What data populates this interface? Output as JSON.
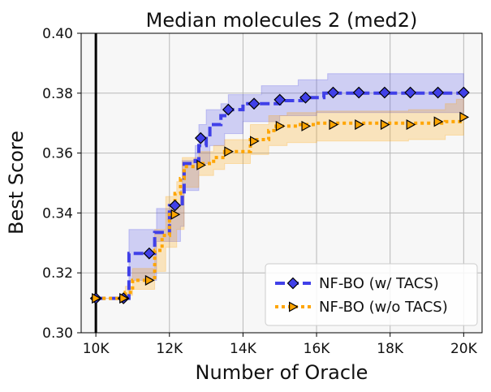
{
  "chart_data": {
    "type": "line",
    "title": "Median molecules 2 (med2)",
    "xlabel": "Number of Oracle",
    "ylabel": "Best Score",
    "xlim": [
      9600,
      20500
    ],
    "ylim": [
      0.3,
      0.4
    ],
    "xticks": [
      10000,
      12000,
      14000,
      16000,
      18000,
      20000
    ],
    "xtick_labels": [
      "10K",
      "12K",
      "14K",
      "16K",
      "18K",
      "20K"
    ],
    "yticks": [
      0.3,
      0.32,
      0.34,
      0.36,
      0.38,
      0.4
    ],
    "ytick_labels": [
      "0.30",
      "0.32",
      "0.34",
      "0.36",
      "0.38",
      "0.40"
    ],
    "grid": true,
    "legend_position": "lower-right",
    "vertical_line_x": 10000,
    "series": [
      {
        "name": "NF-BO (w/ TACS)",
        "color": "#4040e8",
        "marker": "diamond",
        "linestyle": "dashed",
        "step": [
          [
            10000,
            0.3115
          ],
          [
            10750,
            0.3115
          ],
          [
            10900,
            0.3265
          ],
          [
            11500,
            0.3265
          ],
          [
            11600,
            0.3335
          ],
          [
            11900,
            0.3335
          ],
          [
            12000,
            0.3425
          ],
          [
            12300,
            0.3425
          ],
          [
            12350,
            0.3465
          ],
          [
            12400,
            0.3565
          ],
          [
            12700,
            0.3575
          ],
          [
            12800,
            0.3625
          ],
          [
            13000,
            0.3655
          ],
          [
            13100,
            0.3695
          ],
          [
            13400,
            0.3725
          ],
          [
            13600,
            0.3745
          ],
          [
            14000,
            0.3765
          ],
          [
            15000,
            0.3775
          ],
          [
            15600,
            0.3785
          ],
          [
            16200,
            0.38
          ],
          [
            20000,
            0.38
          ]
        ],
        "band_upper": [
          [
            10000,
            0.3115
          ],
          [
            10750,
            0.3115
          ],
          [
            10900,
            0.3345
          ],
          [
            11600,
            0.3345
          ],
          [
            11650,
            0.3415
          ],
          [
            12000,
            0.3415
          ],
          [
            12300,
            0.3475
          ],
          [
            12350,
            0.3575
          ],
          [
            12700,
            0.3625
          ],
          [
            12800,
            0.3695
          ],
          [
            13000,
            0.3745
          ],
          [
            13400,
            0.3765
          ],
          [
            13600,
            0.3795
          ],
          [
            14500,
            0.3825
          ],
          [
            15500,
            0.3845
          ],
          [
            16300,
            0.3865
          ],
          [
            20000,
            0.3865
          ]
        ],
        "band_lower": [
          [
            10000,
            0.3115
          ],
          [
            10750,
            0.3115
          ],
          [
            10900,
            0.3175
          ],
          [
            11600,
            0.3175
          ],
          [
            11650,
            0.3305
          ],
          [
            12000,
            0.3305
          ],
          [
            12300,
            0.3355
          ],
          [
            12400,
            0.3475
          ],
          [
            12800,
            0.3565
          ],
          [
            13100,
            0.3625
          ],
          [
            13500,
            0.3665
          ],
          [
            14000,
            0.3705
          ],
          [
            15000,
            0.3725
          ],
          [
            16000,
            0.3735
          ],
          [
            20000,
            0.3735
          ]
        ],
        "markers_x": [
          10000,
          10750,
          11450,
          12150,
          12850,
          13600,
          14300,
          15000,
          15700,
          16450,
          17150,
          17850,
          18550,
          19300,
          20000
        ],
        "markers_y": [
          0.3115,
          0.3115,
          0.3265,
          0.3425,
          0.365,
          0.3745,
          0.3765,
          0.3778,
          0.3785,
          0.3802,
          0.3802,
          0.3802,
          0.3802,
          0.3802,
          0.3802
        ]
      },
      {
        "name": "NF-BO (w/o TACS)",
        "color": "#ffa500",
        "marker": "triangle-right",
        "linestyle": "dotted",
        "step": [
          [
            10000,
            0.3115
          ],
          [
            10700,
            0.3115
          ],
          [
            10800,
            0.3135
          ],
          [
            11000,
            0.3175
          ],
          [
            11500,
            0.3175
          ],
          [
            11600,
            0.3275
          ],
          [
            11800,
            0.3325
          ],
          [
            12000,
            0.3395
          ],
          [
            12150,
            0.3465
          ],
          [
            12300,
            0.3515
          ],
          [
            12400,
            0.3555
          ],
          [
            12800,
            0.3565
          ],
          [
            13200,
            0.3585
          ],
          [
            13500,
            0.3605
          ],
          [
            14200,
            0.3645
          ],
          [
            14700,
            0.3675
          ],
          [
            14900,
            0.369
          ],
          [
            15500,
            0.3695
          ],
          [
            16000,
            0.37
          ],
          [
            19500,
            0.3705
          ],
          [
            19900,
            0.372
          ],
          [
            20000,
            0.372
          ]
        ],
        "band_upper": [
          [
            10000,
            0.3115
          ],
          [
            10700,
            0.3115
          ],
          [
            10800,
            0.3155
          ],
          [
            11000,
            0.3215
          ],
          [
            11500,
            0.3215
          ],
          [
            11600,
            0.3345
          ],
          [
            11900,
            0.3455
          ],
          [
            12200,
            0.3505
          ],
          [
            12350,
            0.3585
          ],
          [
            12800,
            0.3605
          ],
          [
            13200,
            0.3625
          ],
          [
            13500,
            0.3645
          ],
          [
            14200,
            0.3695
          ],
          [
            14700,
            0.3725
          ],
          [
            15200,
            0.3735
          ],
          [
            16000,
            0.374
          ],
          [
            18500,
            0.3745
          ],
          [
            19500,
            0.3765
          ],
          [
            19800,
            0.378
          ],
          [
            20000,
            0.378
          ]
        ],
        "band_lower": [
          [
            10000,
            0.3115
          ],
          [
            10700,
            0.3115
          ],
          [
            10800,
            0.3125
          ],
          [
            11000,
            0.3145
          ],
          [
            11500,
            0.3145
          ],
          [
            11600,
            0.3205
          ],
          [
            11900,
            0.3285
          ],
          [
            12200,
            0.3345
          ],
          [
            12400,
            0.3485
          ],
          [
            12800,
            0.3525
          ],
          [
            13200,
            0.3545
          ],
          [
            13500,
            0.3565
          ],
          [
            14200,
            0.3595
          ],
          [
            14700,
            0.3625
          ],
          [
            15200,
            0.3635
          ],
          [
            16000,
            0.364
          ],
          [
            18500,
            0.3645
          ],
          [
            19500,
            0.366
          ],
          [
            20000,
            0.366
          ]
        ],
        "markers_x": [
          10000,
          10750,
          11450,
          12150,
          12850,
          13600,
          14300,
          15000,
          15700,
          16450,
          17150,
          17850,
          18550,
          19300,
          20000
        ],
        "markers_y": [
          0.3115,
          0.3115,
          0.3175,
          0.3395,
          0.356,
          0.3605,
          0.364,
          0.369,
          0.369,
          0.3695,
          0.3695,
          0.3695,
          0.3695,
          0.3705,
          0.372
        ]
      }
    ]
  }
}
